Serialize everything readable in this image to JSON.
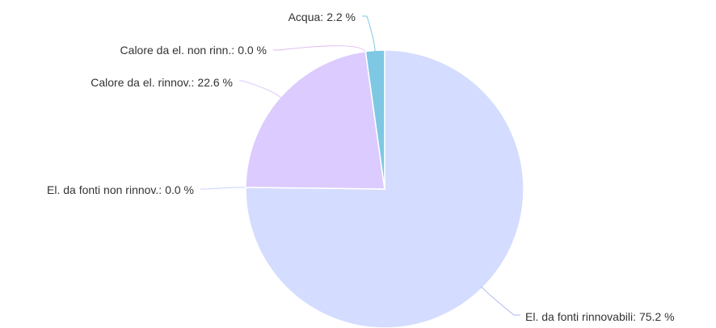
{
  "chart_data": {
    "type": "pie",
    "categories": [
      "El. da fonti rinnovabili:",
      "El. da fonti non rinnov.:",
      "Calore da el. rinnov.:",
      "Calore da el. non rinn.:",
      "Acqua:"
    ],
    "values": [
      75.2,
      0.0,
      22.6,
      0.0,
      2.2
    ],
    "value_labels": [
      "75.2 %",
      "0.0 %",
      "22.6 %",
      "0.0 %",
      "2.2 %"
    ],
    "colors": [
      "#d4dcff",
      "#c8d2ff",
      "#dccbff",
      "#e0b8f0",
      "#7ec8e3"
    ]
  }
}
